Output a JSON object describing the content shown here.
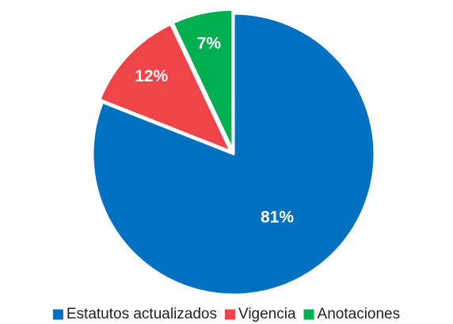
{
  "chart_data": {
    "type": "pie",
    "categories": [
      "Estatutos actualizados",
      "Vigencia",
      "Anotaciones"
    ],
    "values": [
      81,
      12,
      7
    ],
    "value_labels": [
      "81%",
      "12%",
      "7%"
    ],
    "colors": [
      "#0070c0",
      "#ef4549",
      "#00b050"
    ],
    "legend": "bottom"
  }
}
